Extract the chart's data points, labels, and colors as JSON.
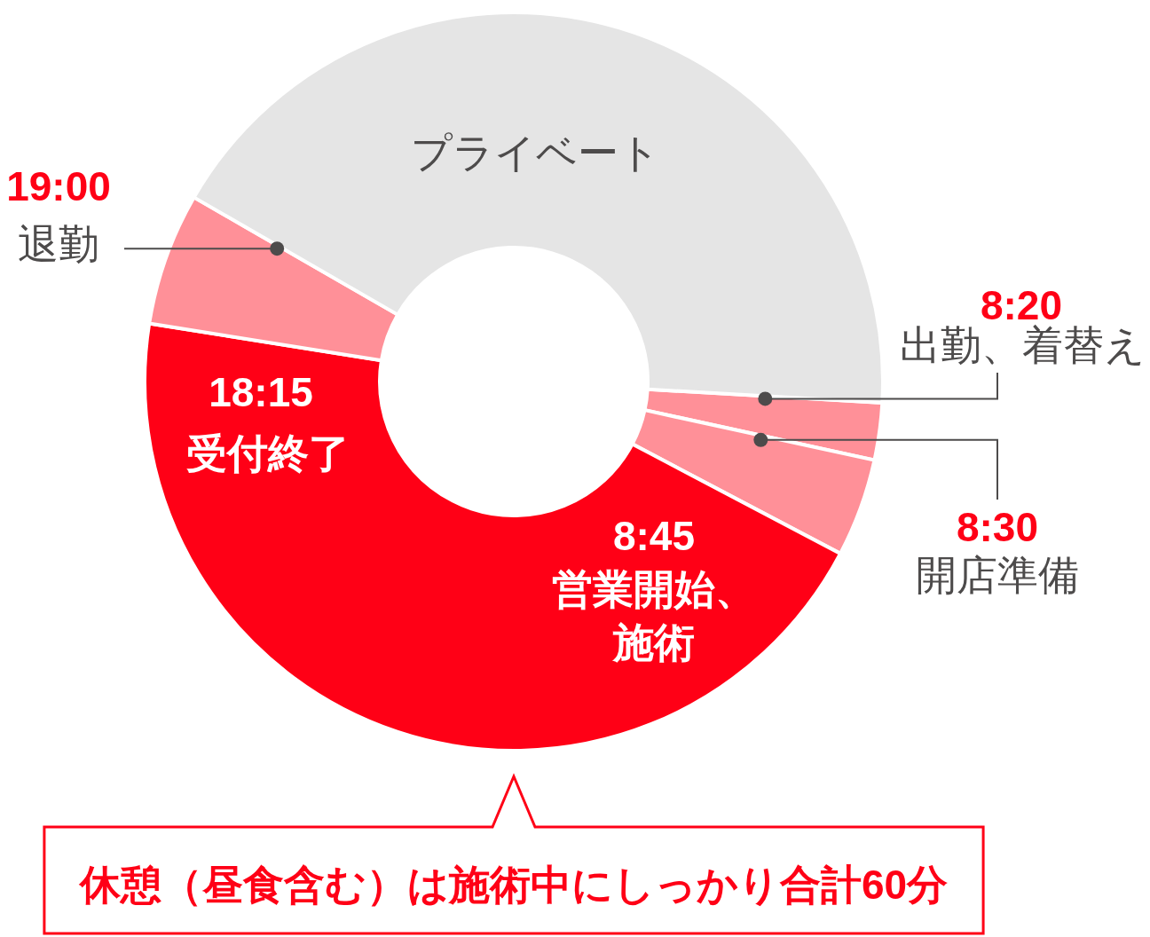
{
  "chart_data": {
    "type": "donut",
    "categories": [
      "出勤、着替え",
      "開店準備",
      "営業開始、施術",
      "退勤",
      "プライベート"
    ],
    "values": [
      2.5,
      4.3,
      44.8,
      5.8,
      42.6
    ],
    "colors": [
      "#ff9098",
      "#ff9098",
      "#ff0016",
      "#ff9098",
      "#e5e5e5"
    ],
    "annotations": [
      "8:20",
      "8:30",
      "8:45",
      "18:15",
      "受付終了",
      "19:00",
      "休憩（昼食含む）は施術中にしっかり合計60分"
    ]
  }
}
